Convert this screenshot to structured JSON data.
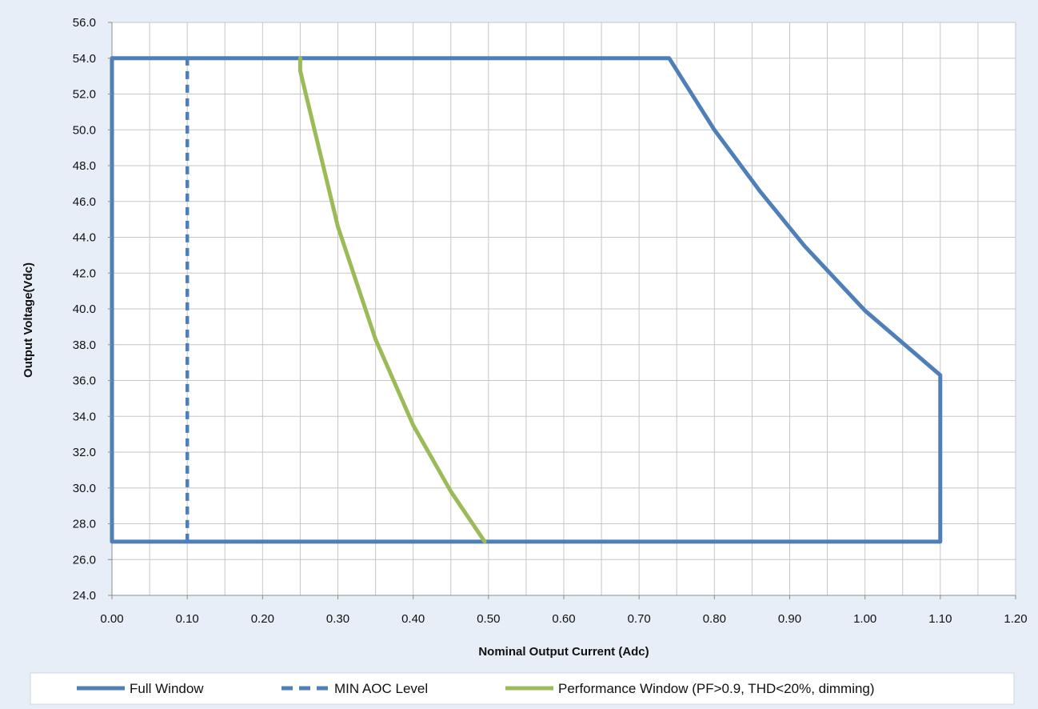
{
  "chart_data": {
    "type": "line",
    "title": "",
    "xlabel": "Nominal Output Current (Adc)",
    "ylabel": "Output Voltage(Vdc)",
    "xlim": [
      0,
      1.2
    ],
    "ylim": [
      24,
      56
    ],
    "x_ticks": [
      "0.00",
      "0.10",
      "0.20",
      "0.30",
      "0.40",
      "0.50",
      "0.60",
      "0.70",
      "0.80",
      "0.90",
      "1.00",
      "1.10",
      "1.20"
    ],
    "y_ticks": [
      "24.0",
      "26.0",
      "28.0",
      "30.0",
      "32.0",
      "34.0",
      "36.0",
      "38.0",
      "40.0",
      "42.0",
      "44.0",
      "46.0",
      "48.0",
      "50.0",
      "52.0",
      "54.0",
      "56.0"
    ],
    "grid": true,
    "legend_position": "bottom",
    "series": [
      {
        "name": "Full Window",
        "color": "#4f7fb9",
        "style": "solid",
        "points": [
          [
            0.0,
            27.0
          ],
          [
            0.0,
            54.0
          ],
          [
            0.74,
            54.0
          ],
          [
            0.8,
            50.0
          ],
          [
            0.86,
            46.6
          ],
          [
            0.92,
            43.5
          ],
          [
            1.0,
            39.9
          ],
          [
            1.1,
            36.3
          ],
          [
            1.1,
            27.0
          ],
          [
            0.0,
            27.0
          ]
        ]
      },
      {
        "name": "MIN AOC Level",
        "color": "#4f7fb9",
        "style": "dashed",
        "points": [
          [
            0.1,
            27.0
          ],
          [
            0.1,
            54.0
          ]
        ]
      },
      {
        "name": "Performance Window (PF>0.9, THD<20%, dimming)",
        "color": "#9bbb59",
        "style": "solid",
        "points": [
          [
            0.25,
            54.0
          ],
          [
            0.25,
            53.3
          ],
          [
            0.3,
            44.6
          ],
          [
            0.35,
            38.3
          ],
          [
            0.4,
            33.5
          ],
          [
            0.45,
            29.8
          ],
          [
            0.495,
            27.0
          ]
        ]
      }
    ]
  }
}
